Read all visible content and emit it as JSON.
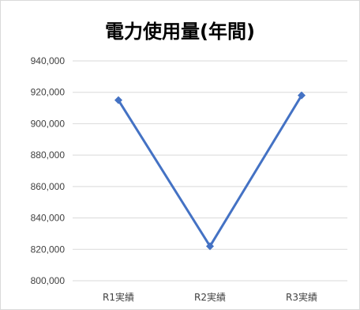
{
  "chart_data": {
    "type": "line",
    "title": "電力使用量(年間)",
    "categories": [
      "R1実績",
      "R2実績",
      "R3実績"
    ],
    "series": [
      {
        "values": [
          915000,
          822000,
          918000
        ],
        "color": "#4472c4"
      }
    ],
    "ylim": [
      800000,
      940000
    ],
    "yticks": [
      800000,
      820000,
      840000,
      860000,
      880000,
      900000,
      920000,
      940000
    ],
    "ytick_labels": [
      "800,000",
      "820,000",
      "840,000",
      "860,000",
      "880,000",
      "900,000",
      "920,000",
      "940,000"
    ],
    "grid": true,
    "legend": "none"
  }
}
